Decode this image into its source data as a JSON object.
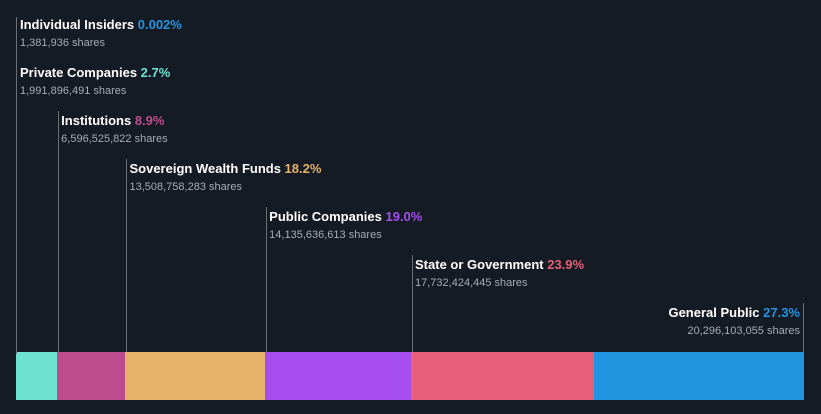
{
  "chart_data": {
    "type": "bar",
    "orientation": "stacked-horizontal",
    "categories": [
      "Individual Insiders",
      "Private Companies",
      "Institutions",
      "Sovereign Wealth Funds",
      "Public Companies",
      "State or Government",
      "General Public"
    ],
    "percent_labels": [
      "0.002%",
      "2.7%",
      "8.9%",
      "18.2%",
      "19.0%",
      "23.9%",
      "27.3%"
    ],
    "values": [
      0.002,
      2.7,
      8.9,
      18.2,
      19.0,
      23.9,
      27.3
    ],
    "shares_labels": [
      "1,381,936 shares",
      "1,991,896,491 shares",
      "6,596,525,822 shares",
      "13,508,758,283 shares",
      "14,135,636,613 shares",
      "17,732,424,445 shares",
      "20,296,103,055 shares"
    ],
    "shares": [
      1381936,
      1991896491,
      6596525822,
      13508758283,
      14135636613,
      17732424445,
      20296103055
    ],
    "colors": [
      "#6fe3d2",
      "#6fe3d2",
      "#bd4c8e",
      "#e5b36a",
      "#a54ded",
      "#e75f79",
      "#2394e0"
    ],
    "bar_colors": [
      "#6fe3d2",
      "#bd4c8e",
      "#e5b36a",
      "#a54ded",
      "#e75f79",
      "#2394e0"
    ],
    "title": "",
    "xlabel": "",
    "ylabel": "",
    "legend": "none",
    "grid": false
  }
}
